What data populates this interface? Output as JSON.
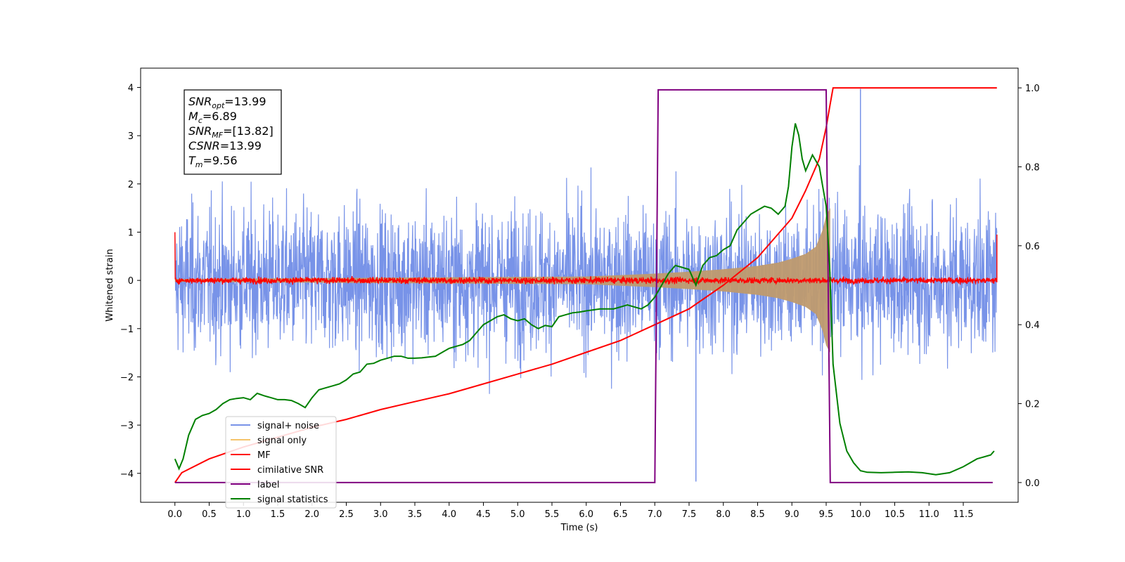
{
  "chart_data": {
    "type": "line",
    "xlabel": "Time (s)",
    "ylabel": "Whitened strain",
    "xlim": [
      -0.5,
      12.3
    ],
    "ylim": [
      -4.6,
      4.4
    ],
    "ylim_right": [
      -0.05,
      1.05
    ],
    "x_ticks": [
      0.0,
      0.5,
      1.0,
      1.5,
      2.0,
      2.5,
      3.0,
      3.5,
      4.0,
      4.5,
      5.0,
      5.5,
      6.0,
      6.5,
      7.0,
      7.5,
      8.0,
      8.5,
      9.0,
      9.5,
      10.0,
      10.5,
      11.0,
      11.5
    ],
    "y_ticks": [
      -4,
      -3,
      -2,
      -1,
      0,
      1,
      2,
      3,
      4
    ],
    "y_ticks_right": [
      0.0,
      0.2,
      0.4,
      0.6,
      0.8,
      1.0
    ],
    "legend_position": "lower-left",
    "annotation": [
      {
        "base": "SNR",
        "sub": "opt",
        "value": "=13.99"
      },
      {
        "base": "M",
        "sub": "c",
        "value": "=6.89"
      },
      {
        "base": "SNR",
        "sub": "MF",
        "value": "=[13.82]"
      },
      {
        "base": "CSNR",
        "sub": "",
        "value": "=13.99"
      },
      {
        "base": "T",
        "sub": "m",
        "value": "=9.56"
      }
    ],
    "series": [
      {
        "name": "signal+ noise",
        "color": "#7893e8",
        "axis": "left",
        "x_range": [
          0.0,
          11.99
        ],
        "amplitude_typical": 2.0,
        "extremes": {
          "max": 3.97,
          "min": -4.17
        }
      },
      {
        "name": "signal only",
        "color": "#f5c46a",
        "axis": "left",
        "envelope_x": [
          0.0,
          6.0,
          6.5,
          7.0,
          7.5,
          8.0,
          8.5,
          8.8,
          9.0,
          9.2,
          9.35,
          9.45,
          9.5,
          9.56
        ],
        "envelope_amp": [
          0.03,
          0.08,
          0.11,
          0.14,
          0.18,
          0.23,
          0.3,
          0.37,
          0.45,
          0.55,
          0.7,
          1.05,
          1.35,
          1.5
        ]
      },
      {
        "name": "MF",
        "color": "#ff0000",
        "axis": "left",
        "x_range": [
          0.0,
          11.99
        ],
        "amplitude_typical": 0.1
      },
      {
        "name": "cimilative SNR",
        "color": "#ff0000",
        "axis": "right",
        "x": [
          0.0,
          0.1,
          0.5,
          1.0,
          1.5,
          2.0,
          2.5,
          3.0,
          3.5,
          4.0,
          4.5,
          5.0,
          5.5,
          6.0,
          6.5,
          7.0,
          7.5,
          8.0,
          8.5,
          9.0,
          9.2,
          9.4,
          9.5,
          9.56,
          9.6,
          11.99
        ],
        "values": [
          0.0,
          0.025,
          0.06,
          0.09,
          0.115,
          0.14,
          0.16,
          0.185,
          0.205,
          0.225,
          0.25,
          0.275,
          0.3,
          0.33,
          0.36,
          0.4,
          0.44,
          0.5,
          0.57,
          0.67,
          0.74,
          0.82,
          0.9,
          0.96,
          1.0,
          1.0
        ]
      },
      {
        "name": "label",
        "color": "#800080",
        "axis": "right",
        "x": [
          0.0,
          7.0,
          7.05,
          9.5,
          9.56,
          11.93
        ],
        "values": [
          0.0,
          0.0,
          0.995,
          0.995,
          0.0,
          0.0
        ]
      },
      {
        "name": "signal statistics",
        "color": "#008000",
        "axis": "right",
        "x": [
          0.0,
          0.06,
          0.12,
          0.2,
          0.3,
          0.4,
          0.5,
          0.6,
          0.7,
          0.8,
          0.9,
          1.0,
          1.1,
          1.2,
          1.3,
          1.4,
          1.5,
          1.6,
          1.7,
          1.8,
          1.9,
          2.0,
          2.1,
          2.2,
          2.3,
          2.4,
          2.5,
          2.6,
          2.7,
          2.8,
          2.9,
          3.0,
          3.1,
          3.2,
          3.3,
          3.4,
          3.5,
          3.6,
          3.7,
          3.8,
          3.9,
          4.0,
          4.1,
          4.2,
          4.3,
          4.4,
          4.5,
          4.6,
          4.7,
          4.8,
          4.9,
          5.0,
          5.1,
          5.2,
          5.3,
          5.4,
          5.5,
          5.6,
          5.7,
          5.8,
          5.9,
          6.0,
          6.2,
          6.4,
          6.6,
          6.8,
          6.9,
          7.0,
          7.1,
          7.2,
          7.3,
          7.4,
          7.5,
          7.6,
          7.7,
          7.8,
          7.9,
          8.0,
          8.1,
          8.2,
          8.3,
          8.4,
          8.5,
          8.6,
          8.7,
          8.8,
          8.9,
          8.95,
          9.0,
          9.05,
          9.1,
          9.15,
          9.2,
          9.3,
          9.4,
          9.45,
          9.5,
          9.55,
          9.6,
          9.7,
          9.8,
          9.9,
          10.0,
          10.1,
          10.3,
          10.5,
          10.7,
          10.9,
          11.1,
          11.3,
          11.5,
          11.7,
          11.9,
          11.95
        ],
        "values": [
          0.06,
          0.035,
          0.06,
          0.12,
          0.16,
          0.17,
          0.175,
          0.185,
          0.2,
          0.21,
          0.213,
          0.215,
          0.21,
          0.226,
          0.22,
          0.215,
          0.21,
          0.21,
          0.208,
          0.2,
          0.19,
          0.215,
          0.235,
          0.24,
          0.245,
          0.25,
          0.26,
          0.275,
          0.28,
          0.3,
          0.302,
          0.31,
          0.315,
          0.32,
          0.32,
          0.315,
          0.315,
          0.316,
          0.318,
          0.32,
          0.33,
          0.34,
          0.345,
          0.35,
          0.36,
          0.38,
          0.4,
          0.41,
          0.42,
          0.425,
          0.415,
          0.41,
          0.415,
          0.4,
          0.39,
          0.398,
          0.395,
          0.42,
          0.425,
          0.43,
          0.432,
          0.435,
          0.44,
          0.44,
          0.45,
          0.44,
          0.45,
          0.47,
          0.5,
          0.53,
          0.55,
          0.545,
          0.54,
          0.5,
          0.55,
          0.57,
          0.575,
          0.59,
          0.6,
          0.64,
          0.66,
          0.68,
          0.69,
          0.7,
          0.695,
          0.68,
          0.7,
          0.75,
          0.85,
          0.91,
          0.88,
          0.82,
          0.79,
          0.83,
          0.8,
          0.75,
          0.7,
          0.55,
          0.3,
          0.15,
          0.08,
          0.05,
          0.03,
          0.026,
          0.025,
          0.026,
          0.027,
          0.025,
          0.02,
          0.025,
          0.04,
          0.06,
          0.07,
          0.08
        ]
      }
    ]
  }
}
